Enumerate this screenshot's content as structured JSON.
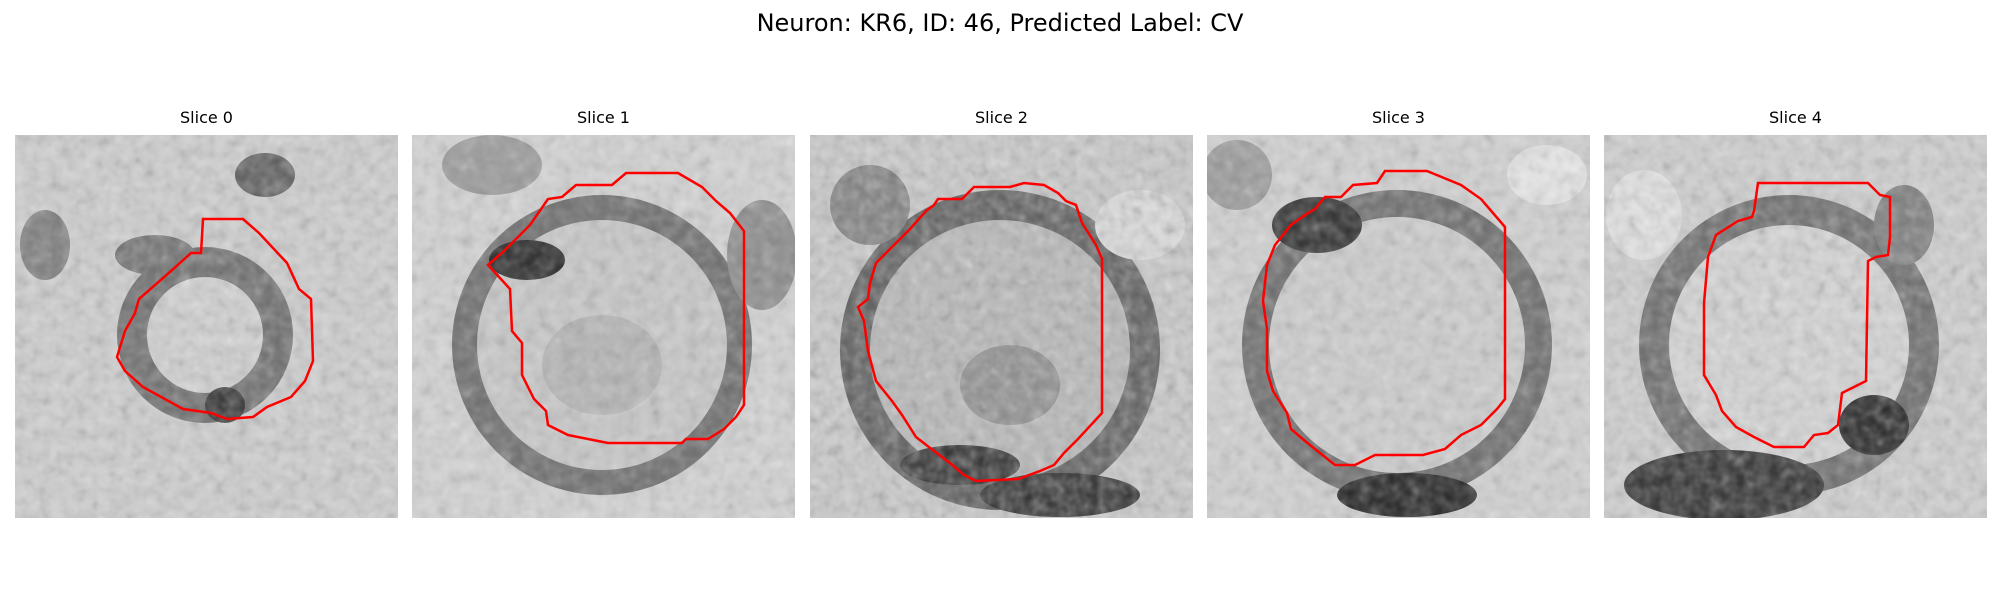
{
  "figure": {
    "title": "Neuron: KR6, ID: 46, Predicted Label: CV"
  },
  "panels": [
    {
      "title": "Slice 0"
    },
    {
      "title": "Slice 1"
    },
    {
      "title": "Slice 2"
    },
    {
      "title": "Slice 3"
    },
    {
      "title": "Slice 4"
    }
  ],
  "colors": {
    "contour": "#ff0000",
    "dark_membrane": "#3a3a3a",
    "light_background": "#d8d8d8"
  }
}
